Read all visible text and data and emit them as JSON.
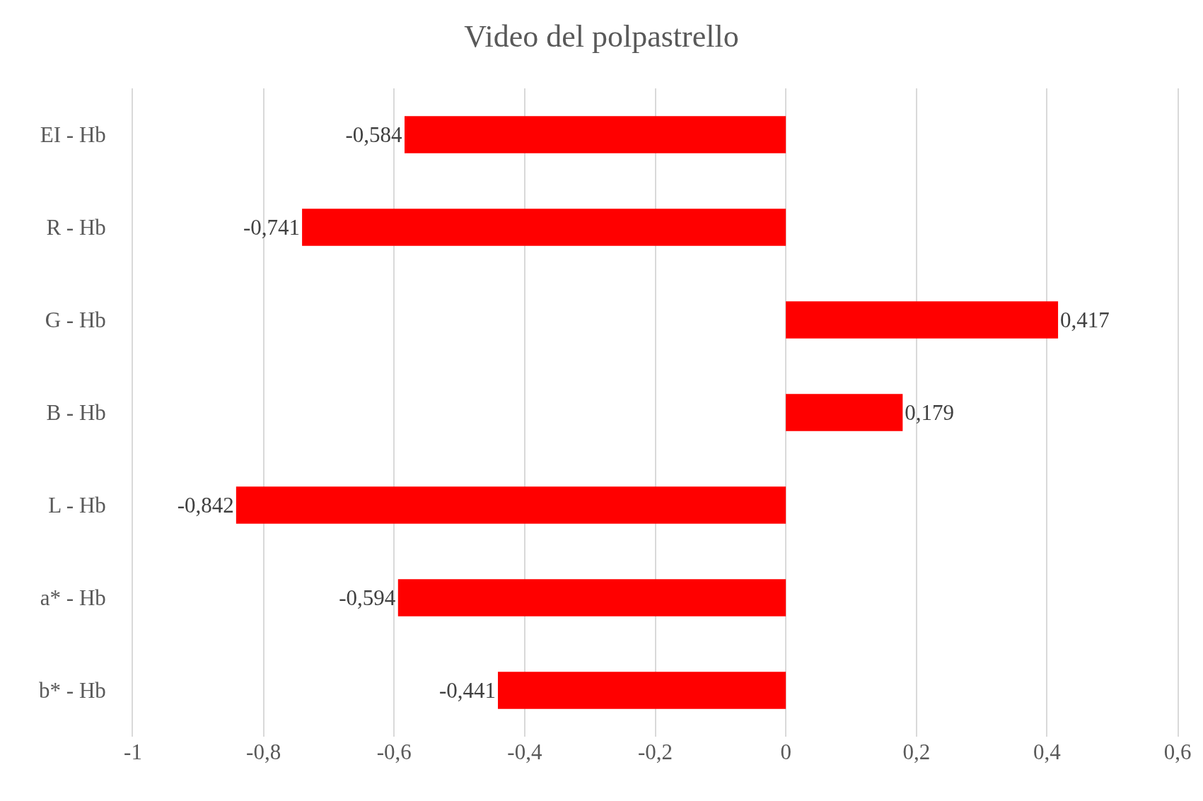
{
  "chart_data": {
    "type": "bar",
    "orientation": "horizontal",
    "title": "Video del polpastrello",
    "categories": [
      "EI - Hb",
      "R - Hb",
      "G - Hb",
      "B - Hb",
      "L - Hb",
      "a* - Hb",
      "b* - Hb"
    ],
    "values": [
      -0.584,
      -0.741,
      0.417,
      0.179,
      -0.842,
      -0.594,
      -0.441
    ],
    "value_labels": [
      "-0,584",
      "-0,741",
      "0,417",
      "0,179",
      "-0,842",
      "-0,594",
      "-0,441"
    ],
    "color": "#ff0000",
    "xlim": [
      -1,
      0.6
    ],
    "xticks": [
      -1,
      {
        "value": -0.8,
        "label": "-0,8"
      },
      {
        "value": -0.6,
        "label": "-0,6"
      },
      {
        "value": -0.4,
        "label": "-0,4"
      },
      {
        "value": -0.2,
        "label": "-0,2"
      },
      0,
      {
        "value": 0.2,
        "label": "0,2"
      },
      {
        "value": 0.4,
        "label": "0,4"
      },
      {
        "value": 0.6,
        "label": "0,6"
      }
    ],
    "grid": "x"
  }
}
